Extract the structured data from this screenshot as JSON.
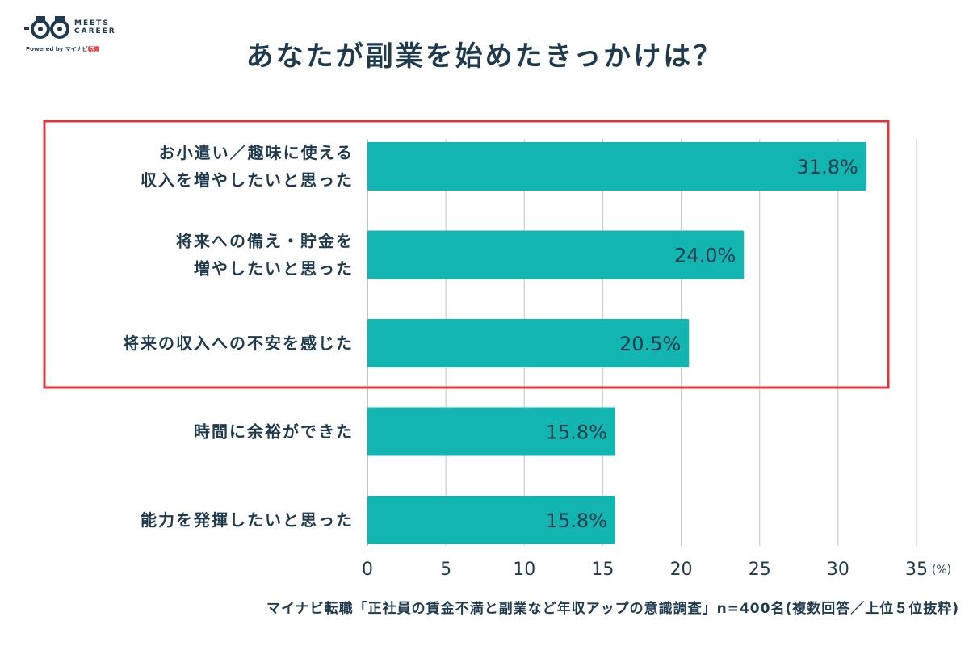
{
  "logo": {
    "line1": "MEETS",
    "line2": "CAREER",
    "powered_prefix": "Powered by ",
    "powered_brand": "マイナビ",
    "powered_brand_red": "転職"
  },
  "colors": {
    "bar": "#13b5b0",
    "text": "#1f3a4d",
    "grid": "#cccccc",
    "highlight": "#e0373f"
  },
  "chart_data": {
    "type": "bar",
    "orientation": "horizontal",
    "title": "あなたが副業を始めたきっかけは？",
    "categories": [
      [
        "お小遣い／趣味に使える",
        "収入を増やしたいと思った"
      ],
      [
        "将来への備え・貯金を",
        "増やしたいと思った"
      ],
      [
        "将来の収入への不安を感じた"
      ],
      [
        "時間に余裕ができた"
      ],
      [
        "能力を発揮したいと思った"
      ]
    ],
    "values": [
      31.8,
      24.0,
      20.5,
      15.8,
      15.8
    ],
    "value_labels": [
      "31.8%",
      "24.0%",
      "20.5%",
      "15.8%",
      "15.8%"
    ],
    "xlim": [
      0,
      35
    ],
    "x_ticks": [
      "0",
      "5",
      "10",
      "15",
      "20",
      "25",
      "30",
      "35"
    ],
    "unit": "(%)",
    "grid": true,
    "highlighted_categories": [
      0,
      1,
      2
    ]
  },
  "footnote": "マイナビ転職「正社員の賃金不満と副業など年収アップの意識調査」n=400名(複数回答／上位５位抜粋)"
}
